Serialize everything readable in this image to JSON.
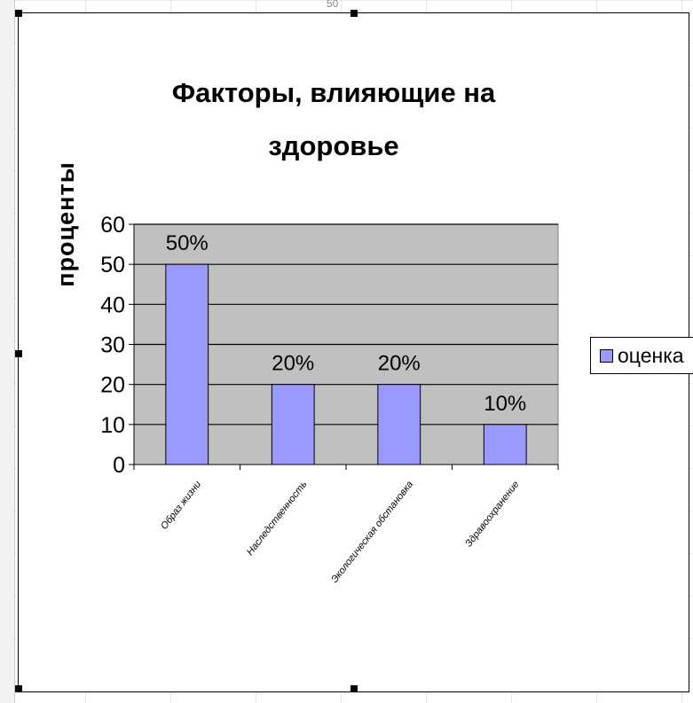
{
  "sheet": {
    "cell_text": "50"
  },
  "chart_data": {
    "type": "bar",
    "title": "Факторы, влияющие на здоровье",
    "title_lines": [
      "Факторы, влияющие на",
      "здоровье"
    ],
    "xlabel": "",
    "ylabel": "проценты",
    "categories": [
      "Образ жизни",
      "Наследственность",
      "Экологическая обстановка",
      "Здравоохранение"
    ],
    "series": [
      {
        "name": "оценка",
        "values": [
          50,
          20,
          20,
          10
        ],
        "color": "#9999ff"
      }
    ],
    "data_labels": [
      "50%",
      "20%",
      "20%",
      "10%"
    ],
    "ylim": [
      0,
      60
    ],
    "yticks": [
      "0",
      "10",
      "20",
      "30",
      "40",
      "50",
      "60"
    ],
    "grid": true,
    "plot_background": "#c0c0c0",
    "legend_position": "right"
  }
}
